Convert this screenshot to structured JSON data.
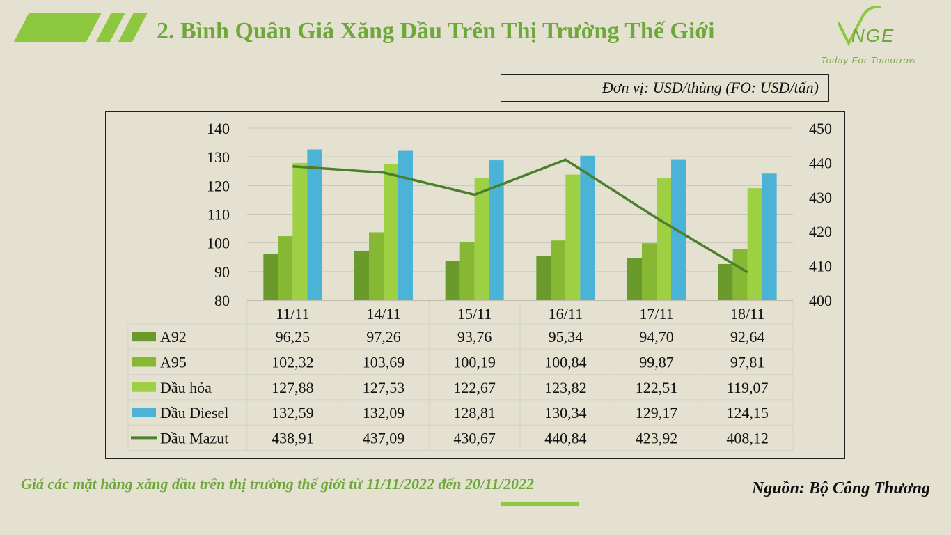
{
  "header": {
    "title": "2. Bình Quân Giá Xăng Dầu Trên Thị Trường Thế Giới",
    "logo_text": "VNGE",
    "logo_tagline": "Today For Tomorrow",
    "unit": "Đơn vị: USD/thùng (FO: USD/tấn)"
  },
  "colors": {
    "title": "#6ea83a",
    "A92": "#6a9a2c",
    "A95": "#86b834",
    "Dau_hoa": "#9ed043",
    "Dau_Diesel": "#4bb3d6",
    "Dau_Mazut": "#4b7f2d"
  },
  "chart_data": {
    "type": "bar",
    "categories": [
      "11/11",
      "14/11",
      "15/11",
      "16/11",
      "17/11",
      "18/11"
    ],
    "ylim": [
      80,
      140
    ],
    "y_ticks": [
      "140",
      "130",
      "120",
      "110",
      "100",
      "90",
      "80"
    ],
    "y2lim": [
      400,
      450
    ],
    "y2_ticks": [
      "450",
      "440",
      "430",
      "420",
      "410",
      "400"
    ],
    "grid": true,
    "series": [
      {
        "name": "A92",
        "type": "bar",
        "axis": "left",
        "values": [
          96.25,
          97.26,
          93.76,
          95.34,
          94.7,
          92.64
        ],
        "labels": [
          "96,25",
          "97,26",
          "93,76",
          "95,34",
          "94,70",
          "92,64"
        ]
      },
      {
        "name": "A95",
        "type": "bar",
        "axis": "left",
        "values": [
          102.32,
          103.69,
          100.19,
          100.84,
          99.87,
          97.81
        ],
        "labels": [
          "102,32",
          "103,69",
          "100,19",
          "100,84",
          "99,87",
          "97,81"
        ]
      },
      {
        "name": "Dầu hỏa",
        "type": "bar",
        "axis": "left",
        "values": [
          127.88,
          127.53,
          122.67,
          123.82,
          122.51,
          119.07
        ],
        "labels": [
          "127,88",
          "127,53",
          "122,67",
          "123,82",
          "122,51",
          "119,07"
        ]
      },
      {
        "name": "Dầu Diesel",
        "type": "bar",
        "axis": "left",
        "values": [
          132.59,
          132.09,
          128.81,
          130.34,
          129.17,
          124.15
        ],
        "labels": [
          "132,59",
          "132,09",
          "128,81",
          "130,34",
          "129,17",
          "124,15"
        ]
      },
      {
        "name": "Dầu Mazut",
        "type": "line",
        "axis": "right",
        "values": [
          438.91,
          437.09,
          430.67,
          440.84,
          423.92,
          408.12
        ],
        "labels": [
          "438,91",
          "437,09",
          "430,67",
          "440,84",
          "423,92",
          "408,12"
        ]
      }
    ]
  },
  "footer": {
    "caption": "Giá các mặt hàng xăng dầu trên thị trường thế giới từ 11/11/2022 đến 20/11/2022",
    "source": "Nguồn: Bộ Công Thương"
  }
}
